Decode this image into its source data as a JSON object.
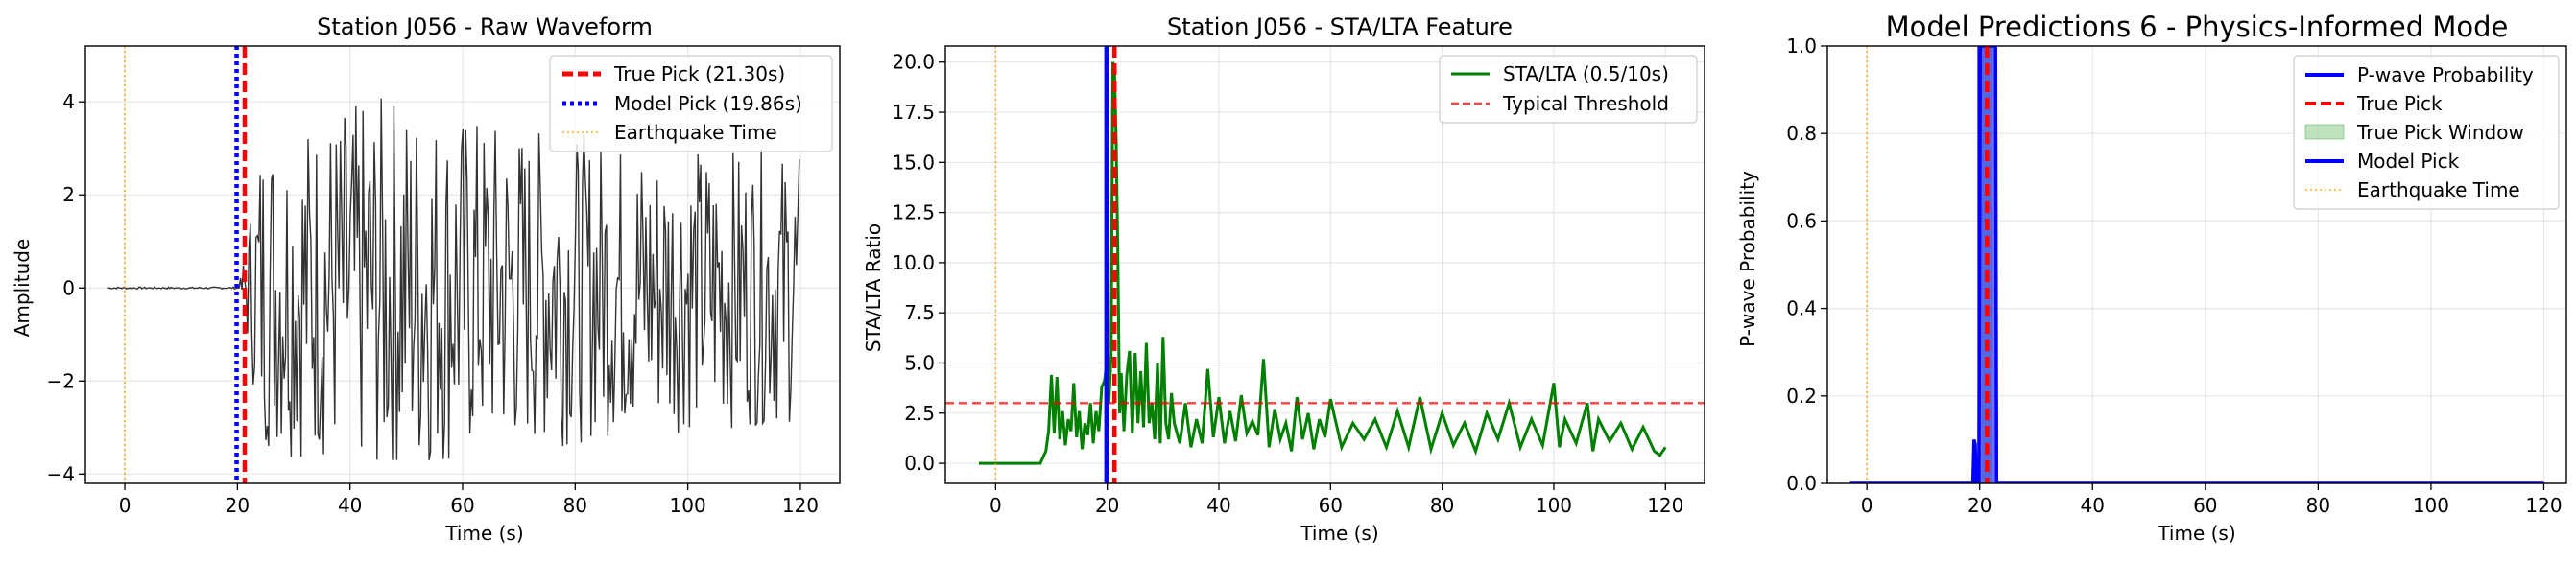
{
  "chart_data": [
    {
      "type": "line",
      "title": "Station J056 - Raw Waveform",
      "xlabel": "Time (s)",
      "ylabel": "Amplitude",
      "xlim": [
        -7,
        127
      ],
      "ylim": [
        -4.2,
        5.2
      ],
      "xticks": [
        0,
        20,
        40,
        60,
        80,
        100,
        120
      ],
      "xtick_labels": [
        "0",
        "20",
        "40",
        "60",
        "80",
        "100",
        "120"
      ],
      "yticks": [
        -4,
        -2,
        0,
        2,
        4
      ],
      "ytick_labels": [
        "−4",
        "−2",
        "0",
        "2",
        "4"
      ],
      "grid": true,
      "legend_position": "upper right",
      "series": [
        {
          "name": "",
          "kind": "waveform",
          "color": "#333333",
          "noise_start": -3,
          "signal_start": 20.3,
          "end": 120,
          "max_amplitude": 4.8,
          "min_amplitude": -3.7
        }
      ],
      "vlines": [
        {
          "name": "True Pick (21.30s)",
          "x": 21.3,
          "color": "#ff0000",
          "style": "dashed"
        },
        {
          "name": "Model Pick (19.86s)",
          "x": 19.86,
          "color": "#0000ff",
          "style": "dotted"
        },
        {
          "name": "Earthquake Time",
          "x": 0,
          "color": "#ffa500",
          "style": "dotted-thin"
        }
      ]
    },
    {
      "type": "line",
      "title": "Station J056 - STA/LTA Feature",
      "xlabel": "Time (s)",
      "ylabel": "STA/LTA Ratio",
      "xlim": [
        -9,
        127
      ],
      "ylim": [
        -1,
        20.8
      ],
      "xticks": [
        0,
        20,
        40,
        60,
        80,
        100,
        120
      ],
      "xtick_labels": [
        "0",
        "20",
        "40",
        "60",
        "80",
        "100",
        "120"
      ],
      "yticks": [
        0,
        2.5,
        5,
        7.5,
        10,
        12.5,
        15,
        17.5,
        20
      ],
      "ytick_labels": [
        "0.0",
        "2.5",
        "5.0",
        "7.5",
        "10.0",
        "12.5",
        "15.0",
        "17.5",
        "20.0"
      ],
      "grid": true,
      "legend_position": "upper right",
      "series": [
        {
          "name": "STA/LTA (0.5/10s)",
          "color": "#008000",
          "x": [
            -3,
            5,
            8,
            9,
            9.5,
            10,
            10.5,
            11,
            11.5,
            12,
            12.5,
            13,
            13.5,
            14,
            14.5,
            15,
            15.5,
            16,
            16.5,
            17,
            17.5,
            18,
            18.5,
            19,
            19.5,
            20,
            20.3,
            20.7,
            21,
            21.3,
            21.6,
            21.9,
            22.2,
            22.5,
            23,
            23.5,
            24,
            24.5,
            25,
            25.5,
            26,
            26.5,
            27,
            27.5,
            28,
            28.5,
            29,
            29.5,
            30,
            30.5,
            31,
            31.5,
            32,
            33,
            34,
            35,
            36,
            37,
            38,
            39,
            40,
            41,
            42,
            43,
            44,
            45,
            46,
            47,
            48,
            49,
            50,
            51,
            52,
            53,
            54,
            55,
            56,
            57,
            58,
            59,
            60,
            62,
            64,
            66,
            68,
            70,
            72,
            74,
            76,
            78,
            80,
            82,
            84,
            86,
            88,
            90,
            92,
            94,
            96,
            98,
            100,
            101,
            102,
            104,
            106,
            107,
            108,
            110,
            112,
            114,
            116,
            118,
            119,
            120
          ],
          "values": [
            0,
            0,
            0,
            0.6,
            1.6,
            4.4,
            1.5,
            4.3,
            1.2,
            2.6,
            0.9,
            2.2,
            1.6,
            4.0,
            1.3,
            2.6,
            0.7,
            2.0,
            1.4,
            3.0,
            1.0,
            2.6,
            1.6,
            3.8,
            4.1,
            5.3,
            3.0,
            5.4,
            20.0,
            19.6,
            16.0,
            10.5,
            2.5,
            4.5,
            1.6,
            4.4,
            5.6,
            1.5,
            5.5,
            2.0,
            4.6,
            1.8,
            6.0,
            2.0,
            3.0,
            1.2,
            5.0,
            1.0,
            6.3,
            2.0,
            1.2,
            3.5,
            2.0,
            1.0,
            3.0,
            0.8,
            2.2,
            1.0,
            4.7,
            1.3,
            3.3,
            1.0,
            2.6,
            1.1,
            3.4,
            1.5,
            2.1,
            1.4,
            5.2,
            0.8,
            2.7,
            1.2,
            2.0,
            0.6,
            3.3,
            1.2,
            2.5,
            0.7,
            2.2,
            1.3,
            3.2,
            0.8,
            2.0,
            1.2,
            2.2,
            0.8,
            2.6,
            0.8,
            3.3,
            0.7,
            2.5,
            0.9,
            2.0,
            0.6,
            2.5,
            1.2,
            3.0,
            0.8,
            2.2,
            0.9,
            4.0,
            0.8,
            2.2,
            1.0,
            3.0,
            0.6,
            2.2,
            1.1,
            2.0,
            0.7,
            1.8,
            0.6,
            0.4,
            0.8
          ]
        }
      ],
      "hlines": [
        {
          "name": "Typical Threshold",
          "y": 3,
          "color": "#ff0000",
          "style": "dashed"
        }
      ],
      "vlines": [
        {
          "name": "",
          "x": 19.86,
          "color": "#0000ff",
          "style": "solid-thick"
        },
        {
          "name": "",
          "x": 21.3,
          "color": "#ff0000",
          "style": "dashed"
        },
        {
          "name": "",
          "x": 0,
          "color": "#ffa500",
          "style": "dotted-thin"
        }
      ]
    },
    {
      "type": "line",
      "title": "Model Predictions 6 - Physics-Informed Mode",
      "xlabel": "Time (s)",
      "ylabel": "P-wave Probability",
      "xlim": [
        -7,
        124
      ],
      "ylim": [
        0,
        1
      ],
      "xticks": [
        0,
        20,
        40,
        60,
        80,
        100,
        120
      ],
      "xtick_labels": [
        "0",
        "20",
        "40",
        "60",
        "80",
        "100",
        "120"
      ],
      "yticks": [
        0,
        0.2,
        0.4,
        0.6,
        0.8,
        1.0
      ],
      "ytick_labels": [
        "0.0",
        "0.2",
        "0.4",
        "0.6",
        "0.8",
        "1.0"
      ],
      "grid": true,
      "legend_position": "upper right",
      "series": [
        {
          "name": "P-wave Probability",
          "color": "#0000ff",
          "x": [
            -3,
            18.8,
            19.0,
            19.2,
            19.4,
            19.6,
            19.86,
            20.1,
            20.3,
            22.8,
            23.0,
            120
          ],
          "values": [
            0,
            0,
            0.1,
            0.09,
            0,
            0,
            0,
            1,
            1,
            1,
            0,
            0
          ]
        }
      ],
      "spans": [
        {
          "name": "True Pick Window",
          "x0": 20.3,
          "x1": 22.3,
          "color": "#2ca02c",
          "alpha": 0.3
        }
      ],
      "vlines": [
        {
          "name": "True Pick",
          "x": 21.3,
          "color": "#ff0000",
          "style": "dashed"
        },
        {
          "name": "Model Pick",
          "x": 19.86,
          "color": "#0000ff",
          "style": "solid"
        },
        {
          "name": "Earthquake Time",
          "x": 0,
          "color": "#ffa500",
          "style": "dotted-thin"
        }
      ]
    }
  ]
}
